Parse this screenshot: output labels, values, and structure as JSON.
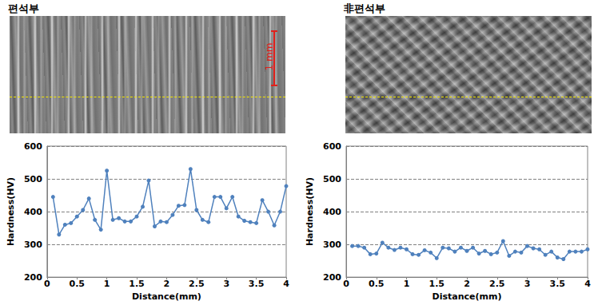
{
  "chart_data": [
    {
      "type": "line",
      "title": "편석부",
      "annotations": [
        "1 mm"
      ],
      "xlabel": "Distance(mm)",
      "ylabel": "Hardness(HV)",
      "x": [
        0.1,
        0.2,
        0.3,
        0.4,
        0.5,
        0.6,
        0.7,
        0.8,
        0.9,
        1.0,
        1.1,
        1.2,
        1.3,
        1.4,
        1.5,
        1.6,
        1.7,
        1.8,
        1.9,
        2.0,
        2.1,
        2.2,
        2.3,
        2.4,
        2.5,
        2.6,
        2.7,
        2.8,
        2.9,
        3.0,
        3.1,
        3.2,
        3.3,
        3.4,
        3.5,
        3.6,
        3.7,
        3.8,
        3.9,
        4.0
      ],
      "values": [
        445,
        330,
        360,
        365,
        385,
        405,
        440,
        375,
        345,
        525,
        375,
        380,
        370,
        370,
        385,
        415,
        495,
        355,
        370,
        368,
        390,
        418,
        420,
        530,
        405,
        375,
        368,
        445,
        445,
        410,
        445,
        385,
        372,
        368,
        365,
        435,
        400,
        358,
        400,
        478
      ],
      "color": "#4f81bd",
      "marker": "circle",
      "line_style": "solid",
      "xlim": [
        0,
        4
      ],
      "xticks": [
        0,
        0.5,
        1,
        1.5,
        2,
        2.5,
        3,
        3.5,
        4
      ],
      "ylim": [
        200,
        600
      ],
      "yticks": [
        200,
        300,
        400,
        500,
        600
      ],
      "grid": true
    },
    {
      "type": "line",
      "title": "非편석부",
      "xlabel": "Distance(mm)",
      "ylabel": "Hardness(HV)",
      "x": [
        0.1,
        0.2,
        0.3,
        0.4,
        0.5,
        0.6,
        0.7,
        0.8,
        0.9,
        1.0,
        1.1,
        1.2,
        1.3,
        1.4,
        1.5,
        1.6,
        1.7,
        1.8,
        1.9,
        2.0,
        2.1,
        2.2,
        2.3,
        2.4,
        2.5,
        2.6,
        2.7,
        2.8,
        2.9,
        3.0,
        3.1,
        3.2,
        3.3,
        3.4,
        3.5,
        3.6,
        3.7,
        3.8,
        3.9,
        4.0
      ],
      "values": [
        295,
        295,
        290,
        270,
        272,
        305,
        290,
        283,
        290,
        285,
        270,
        268,
        282,
        275,
        258,
        290,
        288,
        278,
        290,
        280,
        290,
        272,
        280,
        270,
        275,
        310,
        265,
        278,
        275,
        295,
        288,
        285,
        268,
        278,
        260,
        255,
        278,
        278,
        278,
        285
      ],
      "color": "#4f81bd",
      "marker": "circle",
      "line_style": "solid",
      "xlim": [
        0,
        4
      ],
      "xticks": [
        0,
        0.5,
        1,
        1.5,
        2,
        2.5,
        3,
        3.5,
        4
      ],
      "ylim": [
        200,
        600
      ],
      "yticks": [
        200,
        300,
        400,
        500,
        600
      ],
      "grid": true
    }
  ]
}
